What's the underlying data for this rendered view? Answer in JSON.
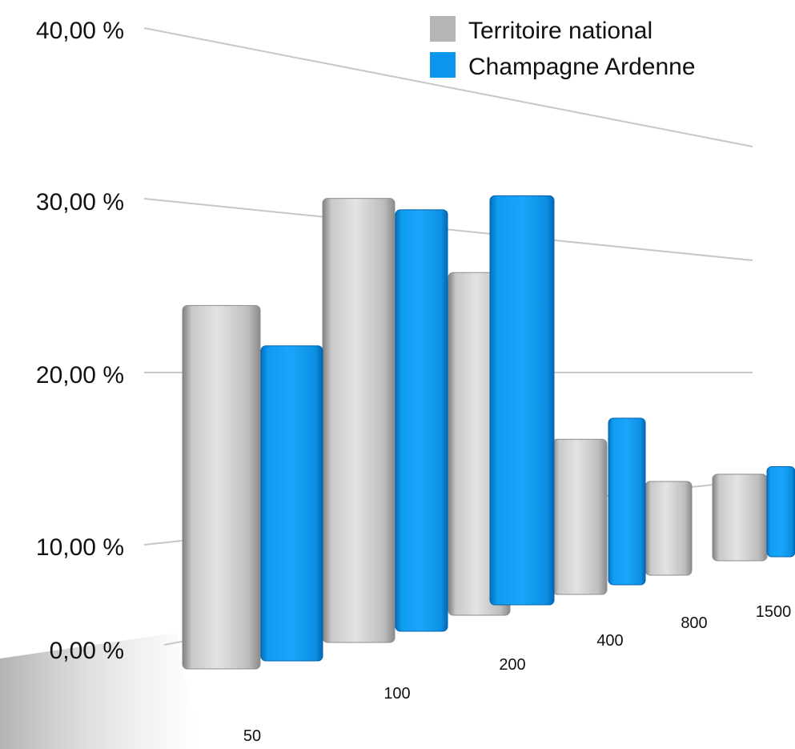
{
  "chart_data": {
    "type": "bar",
    "title": "",
    "xlabel": "",
    "ylabel": "",
    "categories": [
      "50",
      "100",
      "200",
      "400",
      "800",
      "1500"
    ],
    "series": [
      {
        "name": "Territoire national",
        "color": "#b5b5b5",
        "values": [
          25.2,
          30.8,
          24.8,
          12.1,
          7.8,
          7.2
        ]
      },
      {
        "name": "Champagne Ardenne",
        "color": "#0a96ec",
        "values": [
          22.8,
          30.5,
          29.6,
          13.0,
          null,
          7.5
        ]
      }
    ],
    "ylim": [
      0,
      40
    ],
    "yticks": [
      "0,00 %",
      "10,00 %",
      "20,00 %",
      "30,00 %",
      "40,00 %"
    ],
    "grid": true,
    "legend": "top-right",
    "style": "3d-perspective"
  }
}
